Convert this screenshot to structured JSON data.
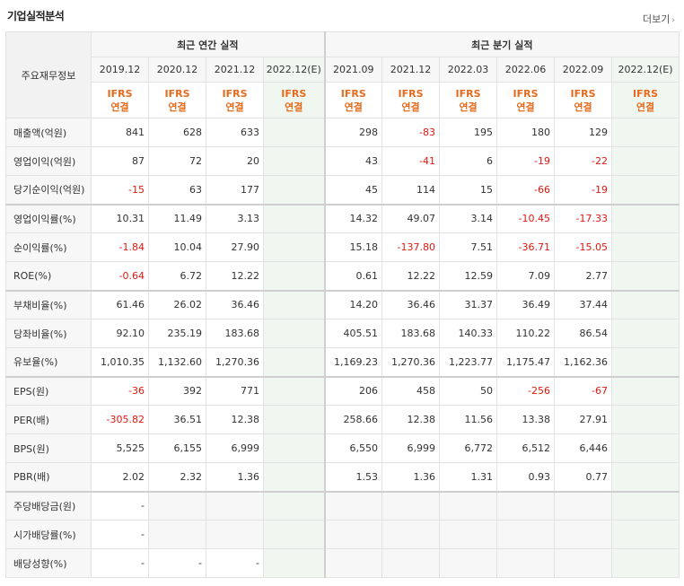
{
  "header": {
    "title": "기업실적분석",
    "more_label": "더보기",
    "more_arrow": "›"
  },
  "table": {
    "row_header": "주요재무정보",
    "annual_label": "최근 연간 실적",
    "quarterly_label": "최근 분기 실적",
    "annual_periods": [
      "2019.12",
      "2020.12",
      "2021.12",
      "2022.12(E)"
    ],
    "quarter_periods": [
      "2021.09",
      "2021.12",
      "2022.03",
      "2022.06",
      "2022.09",
      "2022.12(E)"
    ],
    "ifrs_line1": "IFRS",
    "ifrs_line2": "연결",
    "rows": [
      {
        "label": "매출액(억원)",
        "annual": [
          "841",
          "628",
          "633",
          ""
        ],
        "quarter": [
          "298",
          "-83",
          "195",
          "180",
          "129",
          ""
        ]
      },
      {
        "label": "영업이익(억원)",
        "annual": [
          "87",
          "72",
          "20",
          ""
        ],
        "quarter": [
          "43",
          "-41",
          "6",
          "-19",
          "-22",
          ""
        ]
      },
      {
        "label": "당기순이익(억원)",
        "annual": [
          "-15",
          "63",
          "177",
          ""
        ],
        "quarter": [
          "45",
          "114",
          "15",
          "-66",
          "-19",
          ""
        ]
      },
      {
        "label": "영업이익률(%)",
        "annual": [
          "10.31",
          "11.49",
          "3.13",
          ""
        ],
        "quarter": [
          "14.32",
          "49.07",
          "3.14",
          "-10.45",
          "-17.33",
          ""
        ]
      },
      {
        "label": "순이익률(%)",
        "annual": [
          "-1.84",
          "10.04",
          "27.90",
          ""
        ],
        "quarter": [
          "15.18",
          "-137.80",
          "7.51",
          "-36.71",
          "-15.05",
          ""
        ]
      },
      {
        "label": "ROE(%)",
        "annual": [
          "-0.64",
          "6.72",
          "12.22",
          ""
        ],
        "quarter": [
          "0.61",
          "12.22",
          "12.59",
          "7.09",
          "2.77",
          ""
        ]
      },
      {
        "label": "부채비율(%)",
        "annual": [
          "61.46",
          "26.02",
          "36.46",
          ""
        ],
        "quarter": [
          "14.20",
          "36.46",
          "31.37",
          "36.49",
          "37.44",
          ""
        ]
      },
      {
        "label": "당좌비율(%)",
        "annual": [
          "92.10",
          "235.19",
          "183.68",
          ""
        ],
        "quarter": [
          "405.51",
          "183.68",
          "140.33",
          "110.22",
          "86.54",
          ""
        ]
      },
      {
        "label": "유보율(%)",
        "annual": [
          "1,010.35",
          "1,132.60",
          "1,270.36",
          ""
        ],
        "quarter": [
          "1,169.23",
          "1,270.36",
          "1,223.77",
          "1,175.47",
          "1,162.36",
          ""
        ]
      },
      {
        "label": "EPS(원)",
        "annual": [
          "-36",
          "392",
          "771",
          ""
        ],
        "quarter": [
          "206",
          "458",
          "50",
          "-256",
          "-67",
          ""
        ]
      },
      {
        "label": "PER(배)",
        "annual": [
          "-305.82",
          "36.51",
          "12.38",
          ""
        ],
        "quarter": [
          "258.66",
          "12.38",
          "11.56",
          "13.38",
          "27.91",
          ""
        ]
      },
      {
        "label": "BPS(원)",
        "annual": [
          "5,525",
          "6,155",
          "6,999",
          ""
        ],
        "quarter": [
          "6,550",
          "6,999",
          "6,772",
          "6,512",
          "6,446",
          ""
        ]
      },
      {
        "label": "PBR(배)",
        "annual": [
          "2.02",
          "2.32",
          "1.36",
          ""
        ],
        "quarter": [
          "1.53",
          "1.36",
          "1.31",
          "0.93",
          "0.77",
          ""
        ]
      },
      {
        "label": "주당배당금(원)",
        "annual": [
          "-",
          "",
          "",
          ""
        ],
        "quarter": [
          "",
          "",
          "",
          "",
          "",
          ""
        ]
      },
      {
        "label": "시가배당률(%)",
        "annual": [
          "-",
          "",
          "",
          ""
        ],
        "quarter": [
          "",
          "",
          "",
          "",
          "",
          ""
        ]
      },
      {
        "label": "배당성향(%)",
        "annual": [
          "-",
          "-",
          "-",
          ""
        ],
        "quarter": [
          "",
          "",
          "",
          "",
          "",
          ""
        ]
      }
    ]
  }
}
